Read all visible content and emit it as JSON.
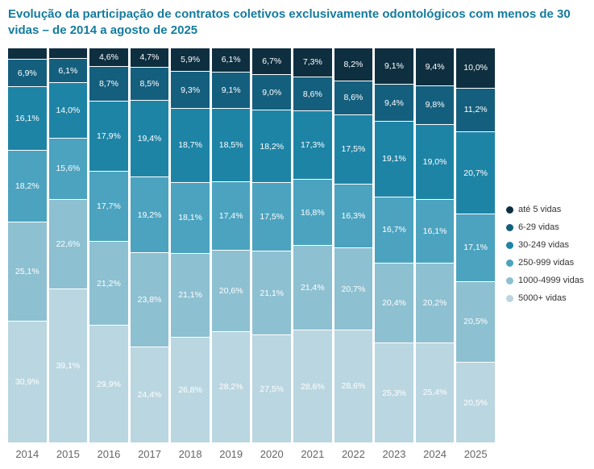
{
  "title": "Evolução da participação de contratos coletivos exclusivamente odontológicos com menos de 30 vidas – de 2014 a agosto de 2025",
  "title_color": "#147b9e",
  "chart_data": {
    "type": "bar",
    "variant": "stacked-percent-column",
    "legend_position": "right",
    "grid": false,
    "ylim": [
      0,
      100
    ],
    "categories": [
      "2014",
      "2015",
      "2016",
      "2017",
      "2018",
      "2019",
      "2020",
      "2021",
      "2022",
      "2023",
      "2024",
      "2025"
    ],
    "series": [
      {
        "name": "até 5 vidas",
        "color": "#0e2f40",
        "values": [
          2.8,
          2.6,
          4.6,
          4.7,
          5.9,
          6.1,
          6.7,
          7.3,
          8.2,
          9.1,
          9.4,
          10.0
        ],
        "labels": [
          "",
          "",
          "4,6%",
          "4,7%",
          "5,9%",
          "6,1%",
          "6,7%",
          "7,3%",
          "8,2%",
          "9,1%",
          "9,4%",
          "10,0%"
        ]
      },
      {
        "name": "6-29 vidas",
        "color": "#155f7e",
        "values": [
          6.9,
          6.1,
          8.7,
          8.5,
          9.3,
          9.1,
          9.0,
          8.6,
          8.6,
          9.4,
          9.8,
          11.2
        ],
        "labels": [
          "6,9%",
          "6,1%",
          "8,7%",
          "8,5%",
          "9,3%",
          "9,1%",
          "9,0%",
          "8,6%",
          "8,6%",
          "9,4%",
          "9,8%",
          "11,2%"
        ]
      },
      {
        "name": "30-249 vidas",
        "color": "#1e84a6",
        "values": [
          16.1,
          14.0,
          17.9,
          19.4,
          18.7,
          18.5,
          18.2,
          17.3,
          17.5,
          19.1,
          19.0,
          20.7
        ],
        "labels": [
          "16,1%",
          "14,0%",
          "17,9%",
          "19,4%",
          "18,7%",
          "18,5%",
          "18,2%",
          "17,3%",
          "17,5%",
          "19,1%",
          "19,0%",
          "20,7%"
        ]
      },
      {
        "name": "250-999 vidas",
        "color": "#4ba3bf",
        "values": [
          18.2,
          15.6,
          17.7,
          19.2,
          18.1,
          17.4,
          17.5,
          16.8,
          16.3,
          16.7,
          16.1,
          17.1
        ],
        "labels": [
          "18,2%",
          "15,6%",
          "17,7%",
          "19,2%",
          "18,1%",
          "17,4%",
          "17,5%",
          "16,8%",
          "16,3%",
          "16,7%",
          "16,1%",
          "17,1%"
        ]
      },
      {
        "name": "1000-4999 vidas",
        "color": "#8dc0d1",
        "values": [
          25.1,
          22.6,
          21.2,
          23.8,
          21.1,
          20.6,
          21.1,
          21.4,
          20.7,
          20.4,
          20.2,
          20.5
        ],
        "labels": [
          "25,1%",
          "22,6%",
          "21,2%",
          "23,8%",
          "21,1%",
          "20,6%",
          "21,1%",
          "21,4%",
          "20,7%",
          "20,4%",
          "20,2%",
          "20,5%"
        ]
      },
      {
        "name": "5000+ vidas",
        "color": "#bad6e0",
        "values": [
          30.9,
          39.1,
          29.9,
          24.4,
          26.8,
          28.2,
          27.5,
          28.6,
          28.6,
          25.3,
          25.4,
          20.5
        ],
        "labels": [
          "30,9%",
          "39,1%",
          "29,9%",
          "24,4%",
          "26,8%",
          "28,2%",
          "27,5%",
          "28,6%",
          "28,6%",
          "25,3%",
          "25,4%",
          "20,5%"
        ]
      }
    ]
  }
}
